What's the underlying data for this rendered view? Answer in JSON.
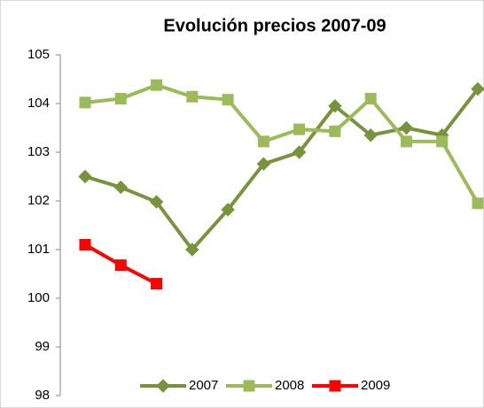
{
  "chart_data": {
    "type": "line",
    "title": "Evolución precios 2007-09",
    "categories": [
      null,
      null,
      null,
      null,
      null,
      null,
      null,
      null,
      null,
      null,
      null,
      null
    ],
    "series": [
      {
        "name": "2007",
        "color": "#77933c",
        "marker": "diamond",
        "values": [
          102.5,
          102.28,
          101.98,
          101.0,
          101.82,
          102.76,
          103.0,
          103.95,
          103.35,
          103.5,
          103.35,
          104.3
        ]
      },
      {
        "name": "2008",
        "color": "#9bbb59",
        "marker": "square",
        "values": [
          104.02,
          104.1,
          104.38,
          104.14,
          104.08,
          103.22,
          103.47,
          103.43,
          104.1,
          103.22,
          103.22,
          101.95
        ]
      },
      {
        "name": "2009",
        "color": "#ff0000",
        "marker": "square",
        "values": [
          101.1,
          100.68,
          100.3,
          null,
          null,
          null,
          null,
          null,
          null,
          null,
          null,
          null
        ]
      }
    ],
    "ylim": [
      98,
      105
    ],
    "yticks": [
      98,
      99,
      100,
      101,
      102,
      103,
      104,
      105
    ],
    "grid": false,
    "legend": "bottom"
  }
}
